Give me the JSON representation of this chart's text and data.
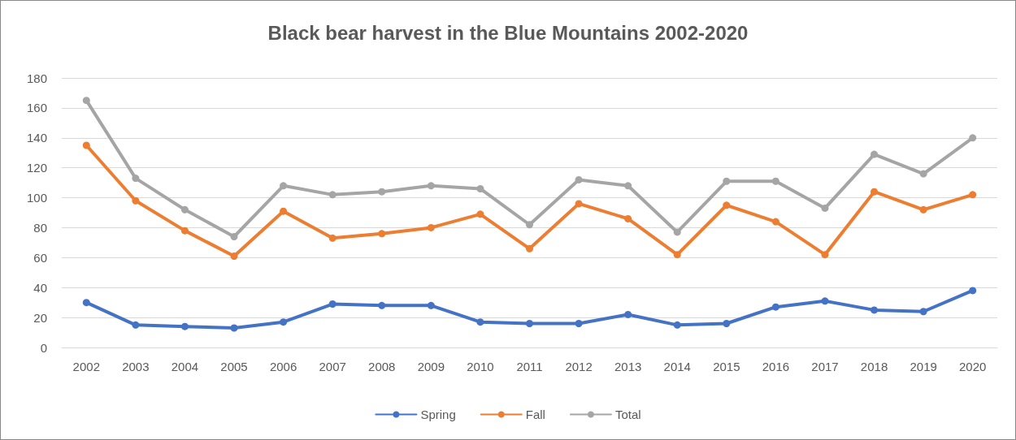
{
  "chart_data": {
    "type": "line",
    "title": "Black bear harvest in the Blue Mountains 2002-2020",
    "categories": [
      "2002",
      "2003",
      "2004",
      "2005",
      "2006",
      "2007",
      "2008",
      "2009",
      "2010",
      "2011",
      "2012",
      "2013",
      "2014",
      "2015",
      "2016",
      "2017",
      "2018",
      "2019",
      "2020"
    ],
    "series": [
      {
        "name": "Spring",
        "color": "#4472c4",
        "values": [
          30,
          15,
          14,
          13,
          17,
          29,
          28,
          28,
          17,
          16,
          16,
          22,
          15,
          16,
          27,
          31,
          25,
          24,
          38
        ]
      },
      {
        "name": "Fall",
        "color": "#ed7d31",
        "values": [
          135,
          98,
          78,
          61,
          91,
          73,
          76,
          80,
          89,
          66,
          96,
          86,
          62,
          95,
          84,
          62,
          104,
          92,
          102
        ]
      },
      {
        "name": "Total",
        "color": "#a5a5a5",
        "values": [
          165,
          113,
          92,
          74,
          108,
          102,
          104,
          108,
          106,
          82,
          112,
          108,
          77,
          111,
          111,
          93,
          129,
          116,
          140
        ]
      }
    ],
    "ylim": [
      0,
      180
    ],
    "yticks": [
      0,
      20,
      40,
      60,
      80,
      100,
      120,
      140,
      160,
      180
    ],
    "grid": "y",
    "legend": "bottom",
    "marker": "circle",
    "line_style": "solid"
  }
}
